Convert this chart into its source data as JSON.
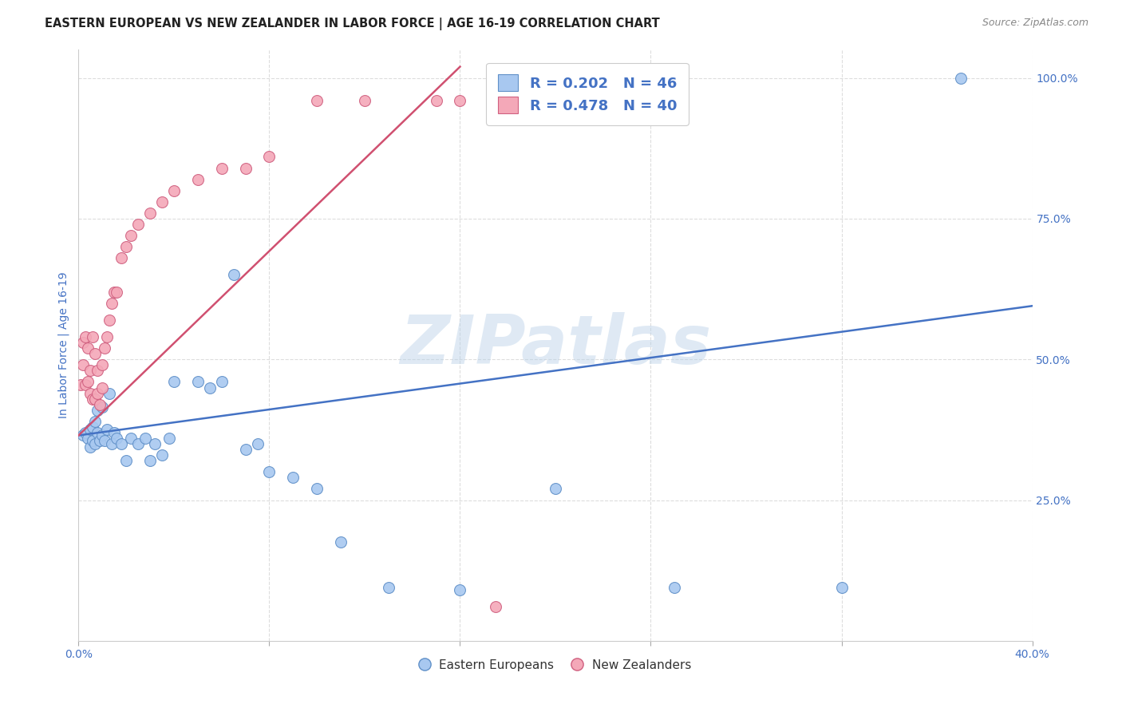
{
  "title": "EASTERN EUROPEAN VS NEW ZEALANDER IN LABOR FORCE | AGE 16-19 CORRELATION CHART",
  "source": "Source: ZipAtlas.com",
  "ylabel": "In Labor Force | Age 16-19",
  "xlim": [
    0.0,
    0.4
  ],
  "ylim": [
    0.0,
    1.05
  ],
  "watermark": "ZIPatlas",
  "blue_color": "#A8C8F0",
  "pink_color": "#F4A8B8",
  "blue_edge_color": "#6090C8",
  "pink_edge_color": "#D06080",
  "blue_line_color": "#4472C4",
  "pink_line_color": "#D05070",
  "legend_text_color": "#4472C4",
  "axis_label_color": "#4472C4",
  "background_color": "#FFFFFF",
  "grid_color": "#DDDDDD",
  "title_color": "#222222",
  "blue_line_x": [
    0.0,
    0.4
  ],
  "blue_line_y": [
    0.365,
    0.595
  ],
  "pink_line_x": [
    0.0,
    0.16
  ],
  "pink_line_y": [
    0.365,
    1.02
  ],
  "blue_points_x": [
    0.002,
    0.003,
    0.004,
    0.005,
    0.005,
    0.006,
    0.006,
    0.007,
    0.007,
    0.008,
    0.008,
    0.009,
    0.01,
    0.01,
    0.011,
    0.012,
    0.013,
    0.014,
    0.015,
    0.016,
    0.018,
    0.02,
    0.022,
    0.025,
    0.028,
    0.03,
    0.032,
    0.035,
    0.038,
    0.04,
    0.05,
    0.055,
    0.06,
    0.065,
    0.07,
    0.075,
    0.08,
    0.09,
    0.1,
    0.11,
    0.13,
    0.16,
    0.2,
    0.25,
    0.32,
    0.37
  ],
  "blue_points_y": [
    0.365,
    0.37,
    0.36,
    0.375,
    0.345,
    0.355,
    0.38,
    0.35,
    0.39,
    0.37,
    0.41,
    0.355,
    0.365,
    0.415,
    0.355,
    0.375,
    0.44,
    0.35,
    0.37,
    0.36,
    0.35,
    0.32,
    0.36,
    0.35,
    0.36,
    0.32,
    0.35,
    0.33,
    0.36,
    0.46,
    0.46,
    0.45,
    0.46,
    0.65,
    0.34,
    0.35,
    0.3,
    0.29,
    0.27,
    0.175,
    0.095,
    0.09,
    0.27,
    0.095,
    0.095,
    1.0
  ],
  "pink_points_x": [
    0.001,
    0.002,
    0.002,
    0.003,
    0.003,
    0.004,
    0.004,
    0.005,
    0.005,
    0.006,
    0.006,
    0.007,
    0.007,
    0.008,
    0.008,
    0.009,
    0.01,
    0.01,
    0.011,
    0.012,
    0.013,
    0.014,
    0.015,
    0.016,
    0.018,
    0.02,
    0.022,
    0.025,
    0.03,
    0.035,
    0.04,
    0.05,
    0.06,
    0.07,
    0.08,
    0.1,
    0.12,
    0.15,
    0.16,
    0.175
  ],
  "pink_points_y": [
    0.455,
    0.49,
    0.53,
    0.455,
    0.54,
    0.46,
    0.52,
    0.44,
    0.48,
    0.43,
    0.54,
    0.43,
    0.51,
    0.44,
    0.48,
    0.42,
    0.45,
    0.49,
    0.52,
    0.54,
    0.57,
    0.6,
    0.62,
    0.62,
    0.68,
    0.7,
    0.72,
    0.74,
    0.76,
    0.78,
    0.8,
    0.82,
    0.84,
    0.84,
    0.86,
    0.96,
    0.96,
    0.96,
    0.96,
    0.06
  ]
}
